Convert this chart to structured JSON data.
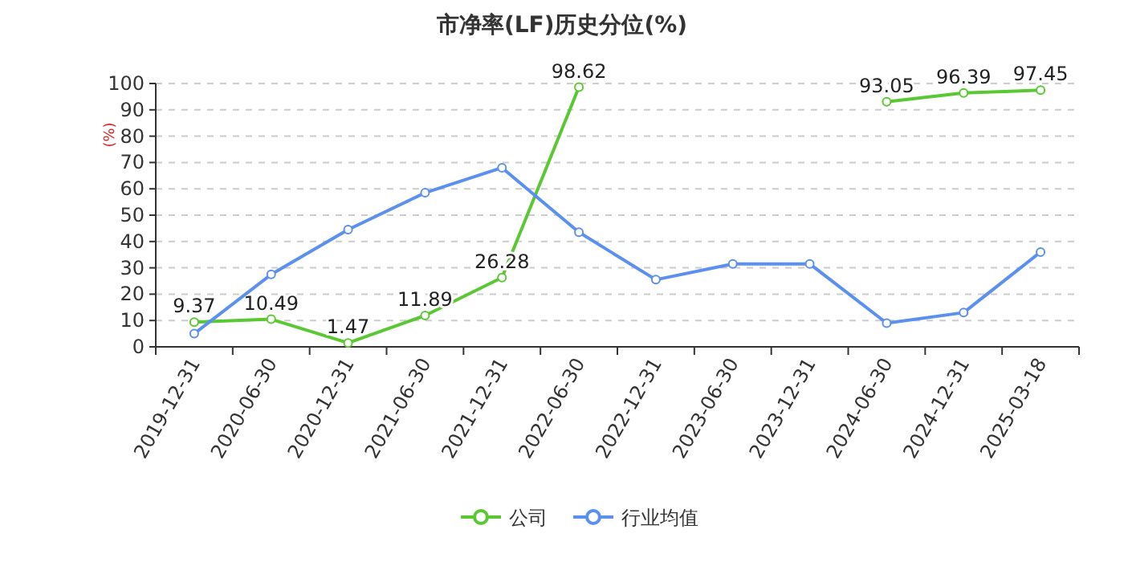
{
  "chart_data": {
    "type": "line",
    "title": "市净率(LF)历史分位(%)",
    "ylabel": "(%)",
    "categories": [
      "2019-12-31",
      "2020-06-30",
      "2020-12-31",
      "2021-06-30",
      "2021-12-31",
      "2022-06-30",
      "2022-12-31",
      "2023-06-30",
      "2023-12-31",
      "2024-06-30",
      "2024-12-31",
      "2025-03-18"
    ],
    "series": [
      {
        "name": "公司",
        "color": "#5ac832",
        "values": [
          9.37,
          10.49,
          1.47,
          11.89,
          26.28,
          98.62,
          null,
          null,
          null,
          93.05,
          96.39,
          97.45
        ],
        "value_labels": [
          "9.37",
          "10.49",
          "1.47",
          "11.89",
          "26.28",
          "98.62",
          null,
          null,
          null,
          "93.05",
          "96.39",
          "97.45"
        ]
      },
      {
        "name": "行业均值",
        "color": "#5b8ff0",
        "values": [
          5,
          27.5,
          44.5,
          58.5,
          68,
          43.5,
          25.5,
          31.5,
          31.5,
          9,
          13,
          36
        ]
      }
    ],
    "ylim": [
      0,
      100
    ],
    "yticks": [
      0,
      10,
      20,
      30,
      40,
      50,
      60,
      70,
      80,
      90,
      100
    ],
    "grid": "y",
    "legend": "bottom",
    "marker": "circle",
    "line_style": "solid"
  }
}
